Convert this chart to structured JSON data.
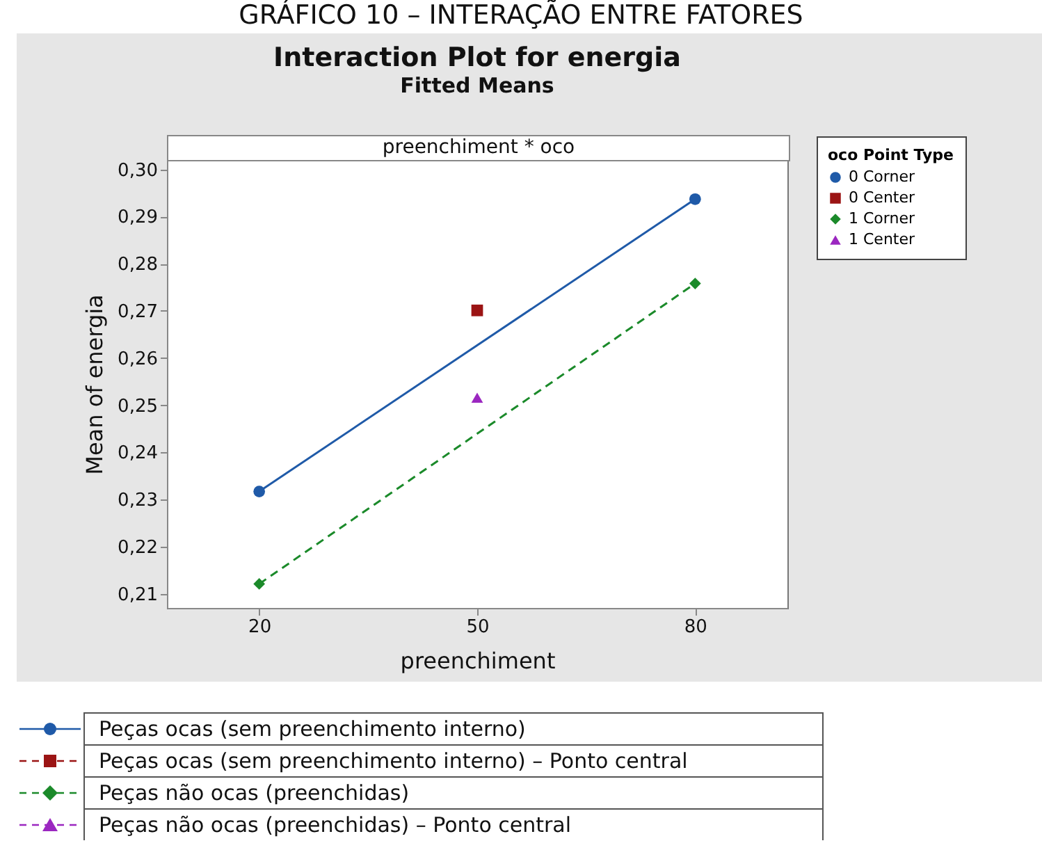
{
  "chart_data": {
    "type": "line",
    "title": "Interaction Plot for energia",
    "subtitle": "Fitted Means",
    "xlabel": "preenchiment",
    "ylabel": "Mean of energia",
    "legend_title": "oco Point Type",
    "legend": "top right",
    "grid": false,
    "annotations": [
      "GRÁFICO 10 – INTERAÇÃO ENTRE FATORES",
      "preenchiment * oco",
      "Peças ocas (sem preenchimento interno)",
      "Peças ocas (sem preenchimento interno) – Ponto central",
      "Peças não ocas (preenchidas)",
      "Peças não ocas (preenchidas) – Ponto central"
    ],
    "xlim": [
      7.3,
      92.7
    ],
    "xticks": [
      20,
      50,
      80
    ],
    "ylim": [
      0.207,
      0.302
    ],
    "yticks": [
      {
        "value": 0.21,
        "label": "0,21"
      },
      {
        "value": 0.22,
        "label": "0,22"
      },
      {
        "value": 0.23,
        "label": "0,23"
      },
      {
        "value": 0.24,
        "label": "0,24"
      },
      {
        "value": 0.25,
        "label": "0,25"
      },
      {
        "value": 0.26,
        "label": "0,26"
      },
      {
        "value": 0.27,
        "label": "0,27"
      },
      {
        "value": 0.28,
        "label": "0,28"
      },
      {
        "value": 0.29,
        "label": "0,29"
      },
      {
        "value": 0.3,
        "label": "0,30"
      }
    ],
    "series": [
      {
        "name": "0 Corner",
        "type": "line",
        "color": "#1f5aa8",
        "marker": "circle",
        "line_style": "solid",
        "x": [
          20,
          80
        ],
        "values": [
          0.2317,
          0.2937
        ]
      },
      {
        "name": "0 Center",
        "type": "scatter",
        "color": "#9b1414",
        "marker": "square",
        "x": [
          50
        ],
        "values": [
          0.2701
        ]
      },
      {
        "name": "1 Corner",
        "type": "line",
        "color": "#1b8a2a",
        "marker": "diamond",
        "line_style": "dashed",
        "x": [
          20,
          80
        ],
        "values": [
          0.2121,
          0.2758
        ]
      },
      {
        "name": "1 Center",
        "type": "scatter",
        "color": "#9b27c0",
        "marker": "triangle",
        "x": [
          50
        ],
        "values": [
          0.2516
        ]
      }
    ]
  }
}
